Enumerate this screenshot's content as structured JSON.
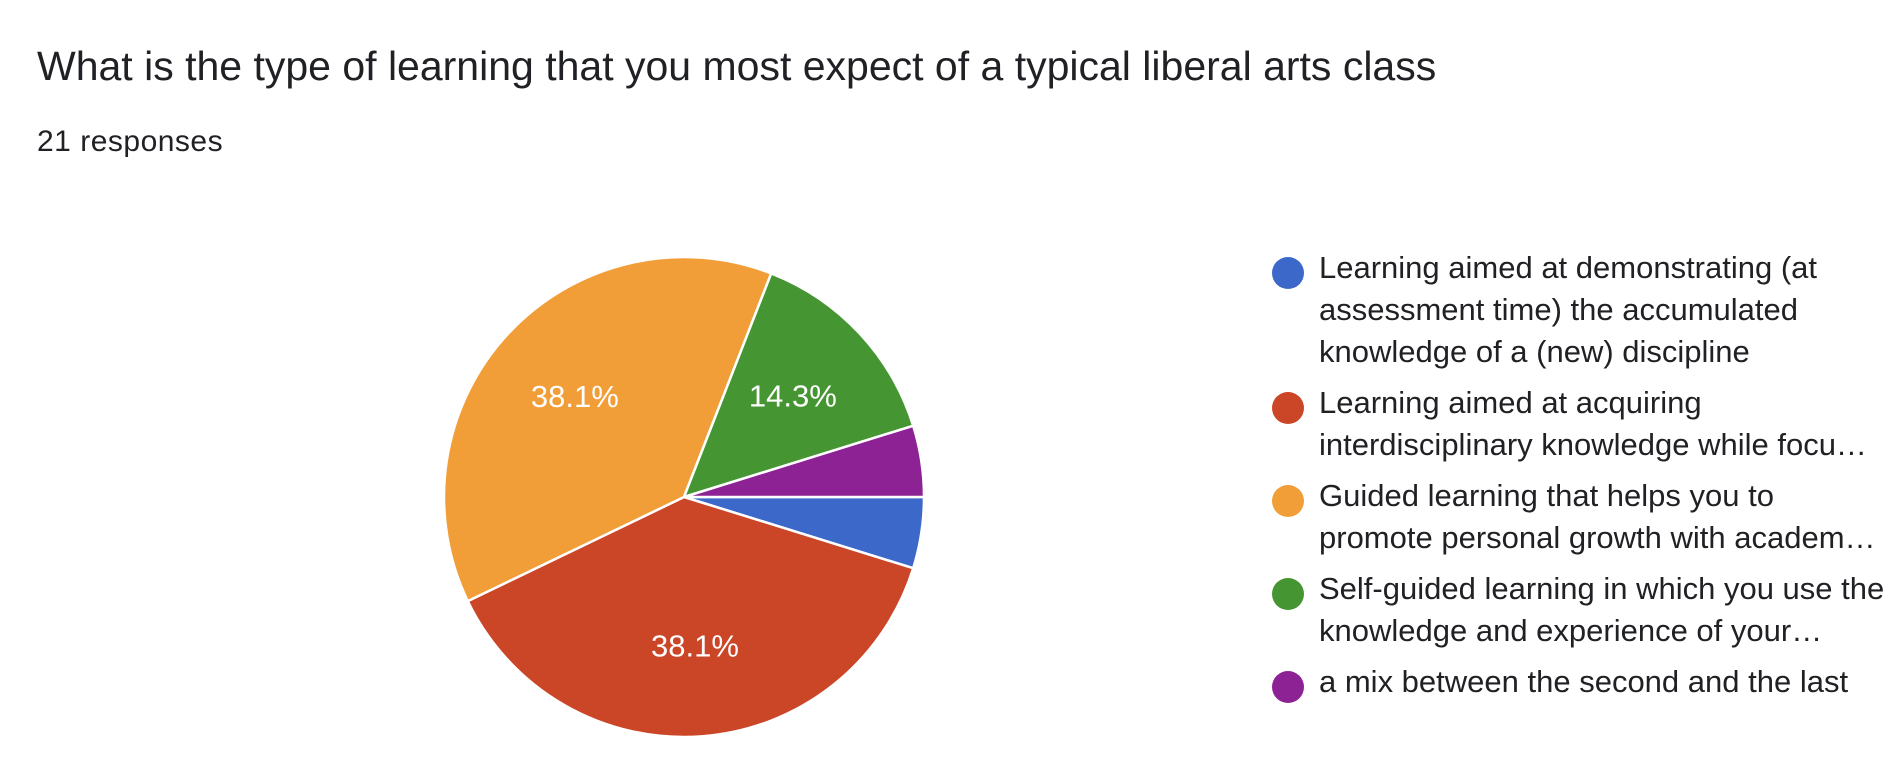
{
  "header": {
    "title": "What is the type of learning that you most expect of a typical liberal arts class",
    "responses": "21 responses"
  },
  "chart_data": {
    "type": "pie",
    "title": "What is the type of learning that you most expect of a typical liberal arts class",
    "slices": [
      {
        "label": "Learning aimed at demonstrating (at assessment time) the accumulated knowledge of a (new) discipline",
        "legend_text": "Learning aimed at demonstrating (at assessment time) the accumulated knowledge of a (new) discipline",
        "value": 4.8,
        "color": "#3c69c9",
        "data_label": ""
      },
      {
        "label": "Learning aimed at acquiring interdisciplinary knowledge while focu…",
        "legend_text": "Learning aimed at acquiring interdisciplinary knowledge while focu…",
        "value": 38.1,
        "color": "#cb4527",
        "data_label": "38.1%"
      },
      {
        "label": "Guided learning that helps you to promote personal growth with academ…",
        "legend_text": "Guided learning that helps you to promote personal growth with academ…",
        "value": 38.1,
        "color": "#f19e38",
        "data_label": "38.1%"
      },
      {
        "label": "Self-guided learning in which you use the knowledge and experience of your…",
        "legend_text": "Self-guided learning in which you use the knowledge and experience of your…",
        "value": 14.3,
        "color": "#459632",
        "data_label": "14.3%"
      },
      {
        "label": "a mix between the second and the last",
        "legend_text": "a mix between the second and the last",
        "value": 4.8,
        "color": "#8c2294",
        "data_label": ""
      }
    ],
    "start_direction": "3 o'clock, clockwise",
    "legend_position": "right"
  }
}
